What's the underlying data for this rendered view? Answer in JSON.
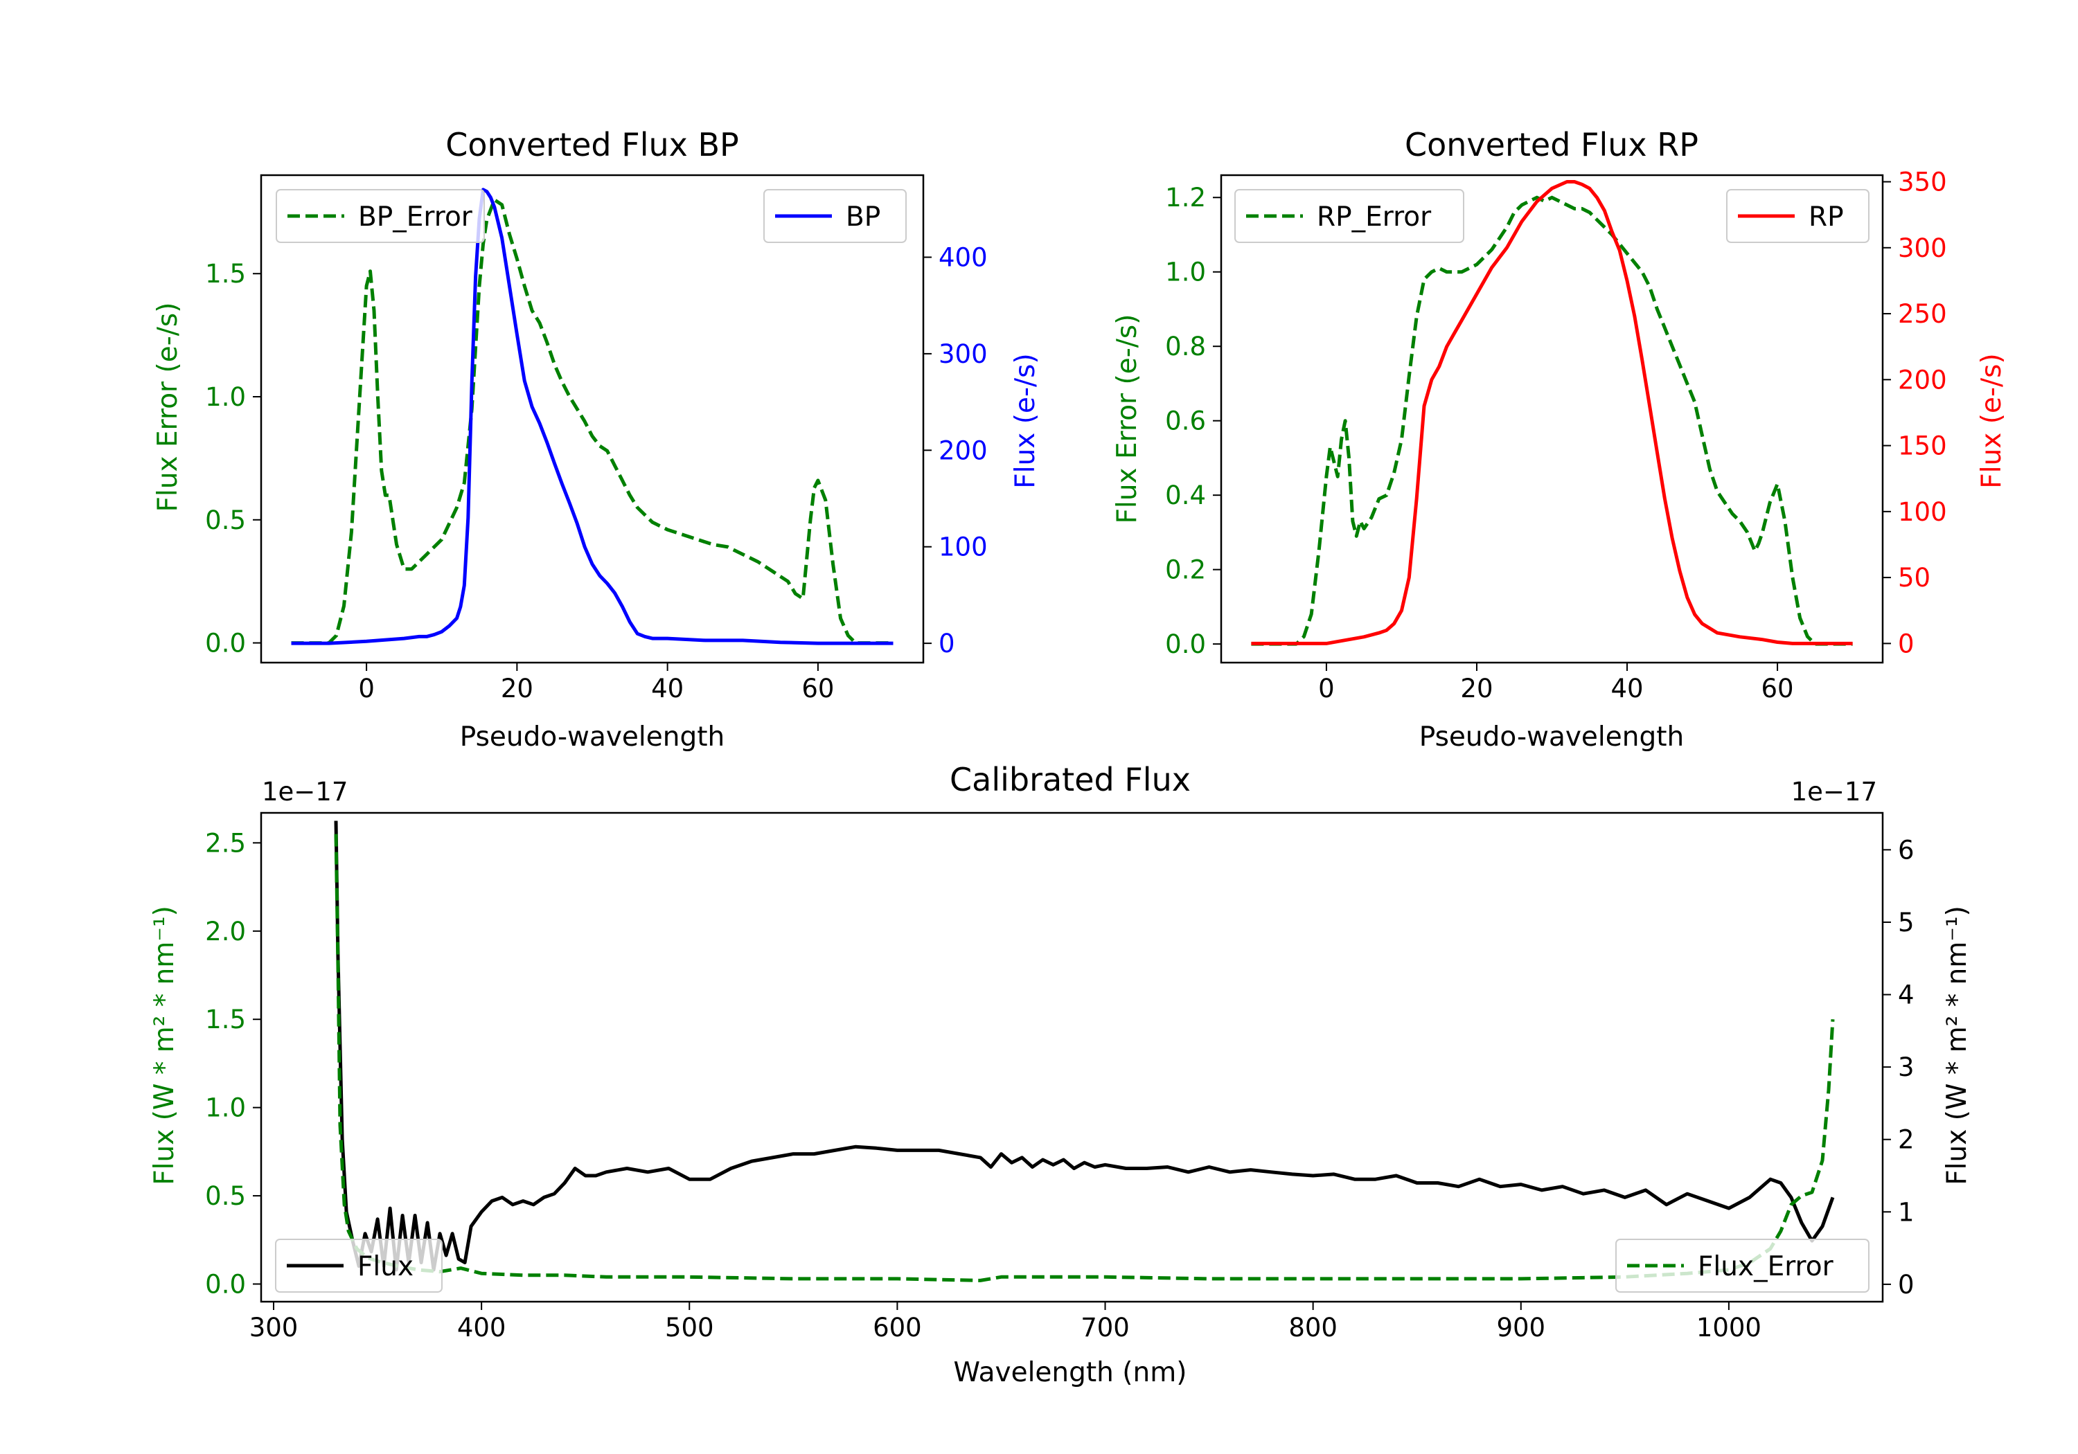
{
  "colors": {
    "green": "#008000",
    "blue": "#0000ff",
    "red": "#ff0000",
    "black": "#000000"
  },
  "chart_data": [
    {
      "id": "bp",
      "type": "line",
      "title": "Converted Flux BP",
      "xlabel": "Pseudo-wavelength",
      "ylabel_left": "Flux Error (e-/s)",
      "ylabel_right": "Flux (e-/s)",
      "xlim": [
        -14,
        74
      ],
      "ylim_left": [
        -0.08,
        1.9
      ],
      "ylim_right": [
        -20,
        485
      ],
      "xticks": [
        0,
        20,
        40,
        60
      ],
      "yticks_left": [
        0.0,
        0.5,
        1.0,
        1.5
      ],
      "yticks_right": [
        0,
        100,
        200,
        300,
        400
      ],
      "legend_left": "BP_Error",
      "legend_right": "BP",
      "series": [
        {
          "name": "BP_Error",
          "axis": "left",
          "style": "dashed",
          "color": "green",
          "x": [
            -10,
            -5,
            -4,
            -3,
            -2,
            -1,
            0,
            0.5,
            1,
            1.5,
            2,
            2.5,
            3,
            4,
            5,
            6,
            8,
            10,
            12,
            13,
            14,
            15,
            15.5,
            16,
            17,
            18,
            19,
            20,
            21,
            22,
            23,
            24,
            25,
            26,
            27,
            28,
            29,
            30,
            31,
            32,
            33,
            34,
            35,
            36,
            38,
            40,
            42,
            44,
            46,
            48,
            50,
            52,
            54,
            55,
            56,
            57,
            58,
            59,
            59.5,
            60,
            61,
            62,
            63,
            64,
            65,
            66,
            70
          ],
          "y": [
            0,
            0,
            0.03,
            0.15,
            0.45,
            0.95,
            1.45,
            1.51,
            1.35,
            1.0,
            0.7,
            0.6,
            0.6,
            0.4,
            0.3,
            0.3,
            0.36,
            0.42,
            0.55,
            0.65,
            0.95,
            1.45,
            1.62,
            1.72,
            1.8,
            1.78,
            1.66,
            1.56,
            1.45,
            1.35,
            1.3,
            1.22,
            1.13,
            1.06,
            1.0,
            0.95,
            0.9,
            0.84,
            0.8,
            0.78,
            0.72,
            0.66,
            0.6,
            0.55,
            0.49,
            0.46,
            0.44,
            0.42,
            0.4,
            0.39,
            0.36,
            0.33,
            0.29,
            0.27,
            0.25,
            0.2,
            0.18,
            0.5,
            0.63,
            0.66,
            0.58,
            0.32,
            0.1,
            0.03,
            0,
            0,
            0
          ]
        },
        {
          "name": "BP",
          "axis": "right",
          "style": "solid",
          "color": "blue",
          "x": [
            -10,
            -5,
            0,
            5,
            7,
            8,
            9,
            10,
            11,
            12,
            12.5,
            13,
            13.5,
            14,
            14.5,
            15,
            15.5,
            16,
            16.5,
            17,
            18,
            19,
            20,
            21,
            22,
            23,
            24,
            25,
            26,
            27,
            28,
            29,
            30,
            31,
            32,
            33,
            34,
            35,
            36,
            37,
            38,
            40,
            45,
            50,
            55,
            60,
            65,
            70
          ],
          "y": [
            0,
            0,
            2,
            5,
            7,
            7,
            9,
            12,
            18,
            26,
            38,
            60,
            130,
            270,
            380,
            440,
            470,
            468,
            462,
            452,
            420,
            370,
            320,
            272,
            245,
            228,
            208,
            186,
            165,
            145,
            124,
            100,
            82,
            70,
            62,
            52,
            38,
            22,
            10,
            7,
            5,
            5,
            3,
            3,
            1,
            0,
            0,
            0
          ]
        }
      ]
    },
    {
      "id": "rp",
      "type": "line",
      "title": "Converted Flux RP",
      "xlabel": "Pseudo-wavelength",
      "ylabel_left": "Flux Error (e-/s)",
      "ylabel_right": "Flux (e-/s)",
      "xlim": [
        -14,
        74
      ],
      "ylim_left": [
        -0.05,
        1.26
      ],
      "ylim_right": [
        -14.5,
        355
      ],
      "xticks": [
        0,
        20,
        40,
        60
      ],
      "yticks_left": [
        0.0,
        0.2,
        0.4,
        0.6,
        0.8,
        1.0,
        1.2
      ],
      "yticks_right": [
        0,
        50,
        100,
        150,
        200,
        250,
        300,
        350
      ],
      "legend_left": "RP_Error",
      "legend_right": "RP",
      "series": [
        {
          "name": "RP_Error",
          "axis": "left",
          "style": "dashed",
          "color": "green",
          "x": [
            -10,
            -4,
            -3,
            -2,
            -1,
            0,
            0.5,
            1,
            1.5,
            2,
            2.5,
            3,
            3.5,
            4,
            4.5,
            5,
            6,
            7,
            8,
            9,
            10,
            11,
            12,
            13,
            14,
            15,
            16,
            17,
            18,
            20,
            22,
            24,
            25,
            26,
            27,
            28,
            29,
            30,
            31,
            32,
            33,
            34,
            35,
            36,
            37,
            38,
            40,
            42,
            43,
            44,
            45,
            46,
            47,
            48,
            49,
            50,
            51,
            52,
            53,
            54,
            55,
            56,
            57,
            57.5,
            58,
            59,
            60,
            61,
            62,
            63,
            64,
            65,
            70
          ],
          "y": [
            0,
            0,
            0.02,
            0.08,
            0.25,
            0.45,
            0.53,
            0.49,
            0.45,
            0.55,
            0.6,
            0.5,
            0.33,
            0.29,
            0.33,
            0.31,
            0.34,
            0.39,
            0.4,
            0.46,
            0.55,
            0.72,
            0.88,
            0.98,
            1.0,
            1.01,
            1.0,
            1.0,
            1.0,
            1.02,
            1.06,
            1.12,
            1.16,
            1.18,
            1.19,
            1.2,
            1.19,
            1.2,
            1.19,
            1.18,
            1.17,
            1.17,
            1.16,
            1.14,
            1.12,
            1.1,
            1.05,
            1.0,
            0.96,
            0.9,
            0.85,
            0.8,
            0.75,
            0.7,
            0.65,
            0.56,
            0.47,
            0.41,
            0.38,
            0.35,
            0.33,
            0.3,
            0.25,
            0.27,
            0.3,
            0.38,
            0.43,
            0.33,
            0.18,
            0.07,
            0.02,
            0,
            0
          ]
        },
        {
          "name": "RP",
          "axis": "right",
          "style": "solid",
          "color": "red",
          "x": [
            -10,
            -5,
            0,
            5,
            7,
            8,
            9,
            10,
            11,
            12,
            13,
            14,
            15,
            16,
            17,
            18,
            20,
            22,
            24,
            26,
            28,
            30,
            32,
            33,
            34,
            35,
            36,
            37,
            38,
            39,
            40,
            41,
            42,
            43,
            44,
            45,
            46,
            47,
            48,
            49,
            50,
            52,
            55,
            58,
            60,
            62,
            65,
            70
          ],
          "y": [
            0,
            0,
            0,
            5,
            8,
            10,
            15,
            25,
            50,
            110,
            180,
            200,
            210,
            225,
            235,
            245,
            265,
            285,
            300,
            320,
            335,
            345,
            350,
            350,
            348,
            345,
            338,
            328,
            312,
            298,
            275,
            248,
            215,
            180,
            145,
            110,
            80,
            55,
            35,
            22,
            15,
            8,
            5,
            3,
            1,
            0,
            0,
            0
          ]
        }
      ]
    },
    {
      "id": "calibrated",
      "type": "line",
      "title": "Calibrated Flux",
      "xlabel": "Wavelength (nm)",
      "ylabel_left": "Flux (W * m² * nm⁻¹)",
      "ylabel_right": "Flux (W * m² * nm⁻¹)",
      "left_offset_label": "1e−17",
      "right_offset_label": "1e−17",
      "xlim": [
        294,
        1074
      ],
      "ylim_left": [
        -0.1,
        2.67
      ],
      "ylim_right": [
        -0.24,
        6.51
      ],
      "xticks": [
        300,
        400,
        500,
        600,
        700,
        800,
        900,
        1000
      ],
      "yticks_left": [
        0.0,
        0.5,
        1.0,
        1.5,
        2.0,
        2.5
      ],
      "yticks_right": [
        0,
        1,
        2,
        3,
        4,
        5,
        6
      ],
      "legend_left": "Flux",
      "legend_right": "Flux_Error",
      "series": [
        {
          "name": "Flux",
          "axis": "right",
          "style": "solid",
          "color": "black",
          "x": [
            330,
            331,
            333,
            335,
            338,
            341,
            344,
            347,
            350,
            353,
            356,
            359,
            362,
            365,
            368,
            371,
            374,
            377,
            380,
            383,
            386,
            389,
            392,
            395,
            400,
            405,
            410,
            415,
            420,
            425,
            430,
            435,
            440,
            445,
            450,
            455,
            460,
            470,
            480,
            490,
            500,
            510,
            520,
            530,
            540,
            550,
            560,
            570,
            580,
            590,
            600,
            610,
            620,
            630,
            640,
            645,
            650,
            655,
            660,
            665,
            670,
            675,
            680,
            685,
            690,
            695,
            700,
            710,
            720,
            730,
            740,
            750,
            760,
            770,
            780,
            790,
            800,
            810,
            820,
            830,
            840,
            850,
            860,
            870,
            880,
            890,
            900,
            910,
            920,
            930,
            940,
            950,
            960,
            970,
            980,
            990,
            1000,
            1010,
            1020,
            1025,
            1030,
            1035,
            1040,
            1045,
            1050
          ],
          "y": [
            6.4,
            4.5,
            2.0,
            1.0,
            0.6,
            0.25,
            0.7,
            0.45,
            0.9,
            0.25,
            1.05,
            0.2,
            0.95,
            0.3,
            0.95,
            0.3,
            0.85,
            0.2,
            0.7,
            0.4,
            0.7,
            0.35,
            0.3,
            0.8,
            1.0,
            1.15,
            1.2,
            1.1,
            1.15,
            1.1,
            1.2,
            1.25,
            1.4,
            1.6,
            1.5,
            1.5,
            1.55,
            1.6,
            1.55,
            1.6,
            1.45,
            1.45,
            1.6,
            1.7,
            1.75,
            1.8,
            1.8,
            1.85,
            1.9,
            1.88,
            1.85,
            1.85,
            1.85,
            1.8,
            1.75,
            1.62,
            1.8,
            1.68,
            1.75,
            1.62,
            1.72,
            1.65,
            1.72,
            1.6,
            1.68,
            1.62,
            1.65,
            1.6,
            1.6,
            1.62,
            1.55,
            1.62,
            1.55,
            1.58,
            1.55,
            1.52,
            1.5,
            1.52,
            1.45,
            1.45,
            1.5,
            1.4,
            1.4,
            1.35,
            1.45,
            1.35,
            1.38,
            1.3,
            1.35,
            1.25,
            1.3,
            1.2,
            1.3,
            1.1,
            1.25,
            1.15,
            1.05,
            1.2,
            1.45,
            1.4,
            1.2,
            0.85,
            0.6,
            0.8,
            1.2
          ]
        },
        {
          "name": "Flux_Error",
          "axis": "left",
          "style": "dashed",
          "color": "green",
          "x": [
            330,
            331,
            332,
            334,
            336,
            340,
            345,
            350,
            360,
            370,
            380,
            390,
            400,
            420,
            440,
            460,
            500,
            550,
            600,
            640,
            650,
            700,
            750,
            800,
            850,
            900,
            950,
            980,
            1000,
            1010,
            1020,
            1025,
            1030,
            1035,
            1040,
            1045,
            1048,
            1050
          ],
          "y": [
            2.55,
            1.8,
            0.9,
            0.45,
            0.3,
            0.2,
            0.15,
            0.13,
            0.1,
            0.08,
            0.07,
            0.09,
            0.06,
            0.05,
            0.05,
            0.04,
            0.04,
            0.03,
            0.03,
            0.02,
            0.04,
            0.04,
            0.03,
            0.03,
            0.03,
            0.03,
            0.04,
            0.06,
            0.08,
            0.12,
            0.2,
            0.3,
            0.45,
            0.5,
            0.52,
            0.7,
            1.1,
            1.5
          ]
        }
      ]
    }
  ]
}
